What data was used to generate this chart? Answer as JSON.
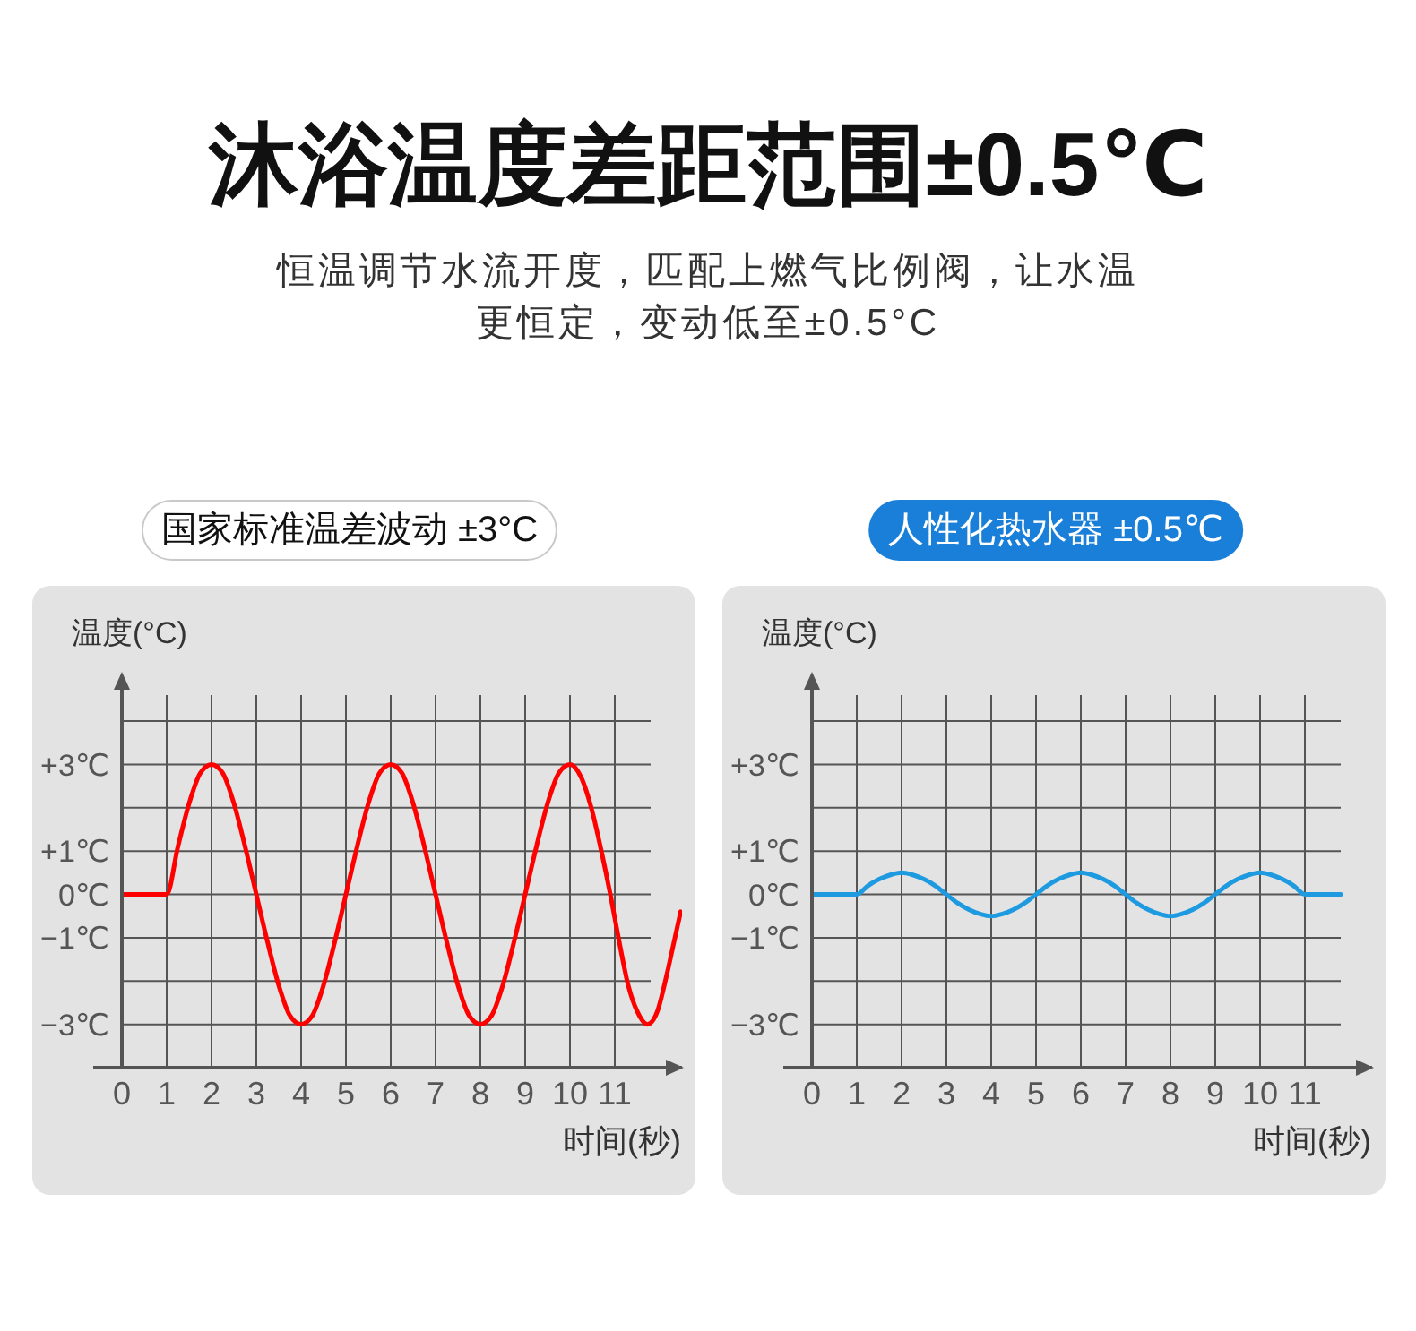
{
  "chart_data": [
    {
      "type": "other",
      "title": "沐浴温度差距范围±0.5℃",
      "subtitle": "恒温调节水流开度，匹配上燃气比例阀，让水温更恒定，变动低至±0.5°C"
    },
    {
      "type": "line",
      "title": "国家标准温差波动 ±3°C",
      "xlabel": "时间(秒)",
      "ylabel": "温度(°C)",
      "xlim": [
        0,
        12.5
      ],
      "xticks": [
        0,
        1,
        2,
        3,
        4,
        5,
        6,
        7,
        8,
        9,
        10,
        11
      ],
      "ylim": [
        -4,
        4.6
      ],
      "yticks": [
        {
          "value": -3,
          "label": "−3℃"
        },
        {
          "value": -2,
          "label": null
        },
        {
          "value": -1,
          "label": "−1℃"
        },
        {
          "value": 0,
          "label": "0℃"
        },
        {
          "value": 1,
          "label": "+1℃"
        },
        {
          "value": 2,
          "label": null
        },
        {
          "value": 3,
          "label": "+3℃"
        },
        {
          "value": 4,
          "label": null
        }
      ],
      "grid": true,
      "marker": "none",
      "series": [
        {
          "color": "#ff0000",
          "x": [
            0,
            1,
            1.25,
            1.5,
            1.75,
            2,
            2.25,
            2.5,
            2.75,
            3,
            3.25,
            3.5,
            3.75,
            4,
            4.25,
            4.5,
            4.75,
            5,
            5.25,
            5.5,
            5.75,
            6,
            6.25,
            6.5,
            6.75,
            7,
            7.25,
            7.5,
            7.75,
            8,
            8.25,
            8.5,
            8.75,
            9,
            9.25,
            9.5,
            9.75,
            10,
            10.25,
            10.5,
            10.7,
            10.9,
            11.1,
            11.3,
            11.5,
            11.73,
            11.95,
            12.15,
            12.3,
            12.47
          ],
          "values": [
            0,
            0,
            1.1,
            2.1,
            2.8,
            3,
            2.8,
            2.1,
            1.1,
            0,
            -1.1,
            -2.1,
            -2.8,
            -3,
            -2.8,
            -2.1,
            -1.1,
            0,
            1.1,
            2.1,
            2.8,
            3,
            2.8,
            2.1,
            1.1,
            0,
            -1.1,
            -2.1,
            -2.8,
            -3,
            -2.8,
            -2.1,
            -1.1,
            0,
            1.1,
            2.1,
            2.8,
            3,
            2.7,
            1.9,
            1.0,
            0,
            -1.1,
            -2.1,
            -2.7,
            -3,
            -2.7,
            -1.9,
            -1.2,
            -0.4
          ]
        }
      ]
    },
    {
      "type": "line",
      "title": "人性化热水器 ±0.5℃",
      "xlabel": "时间(秒)",
      "ylabel": "温度(°C)",
      "xlim": [
        0,
        12.5
      ],
      "xticks": [
        0,
        1,
        2,
        3,
        4,
        5,
        6,
        7,
        8,
        9,
        10,
        11
      ],
      "ylim": [
        -4,
        4.6
      ],
      "yticks": [
        {
          "value": -3,
          "label": "−3℃"
        },
        {
          "value": -2,
          "label": null
        },
        {
          "value": -1,
          "label": "−1℃"
        },
        {
          "value": 0,
          "label": "0℃"
        },
        {
          "value": 1,
          "label": "+1℃"
        },
        {
          "value": 2,
          "label": null
        },
        {
          "value": 3,
          "label": "+3℃"
        },
        {
          "value": 4,
          "label": null
        }
      ],
      "grid": true,
      "marker": "none",
      "series": [
        {
          "color": "#1e9be0",
          "x": [
            0,
            1,
            1.25,
            1.5,
            1.75,
            2,
            2.25,
            2.5,
            2.75,
            3,
            3.25,
            3.5,
            3.75,
            4,
            4.25,
            4.5,
            4.75,
            5,
            5.25,
            5.5,
            5.75,
            6,
            6.25,
            6.5,
            6.75,
            7,
            7.25,
            7.5,
            7.75,
            8,
            8.25,
            8.5,
            8.75,
            9,
            9.25,
            9.5,
            9.75,
            10,
            10.25,
            10.5,
            10.75,
            11,
            11.8
          ],
          "values": [
            0,
            0,
            0.2,
            0.35,
            0.45,
            0.5,
            0.45,
            0.35,
            0.2,
            0,
            -0.2,
            -0.35,
            -0.45,
            -0.5,
            -0.45,
            -0.35,
            -0.2,
            0,
            0.2,
            0.35,
            0.45,
            0.5,
            0.45,
            0.35,
            0.2,
            0,
            -0.2,
            -0.35,
            -0.45,
            -0.5,
            -0.45,
            -0.35,
            -0.2,
            0,
            0.2,
            0.35,
            0.45,
            0.5,
            0.45,
            0.35,
            0.2,
            0,
            0
          ]
        }
      ]
    }
  ]
}
